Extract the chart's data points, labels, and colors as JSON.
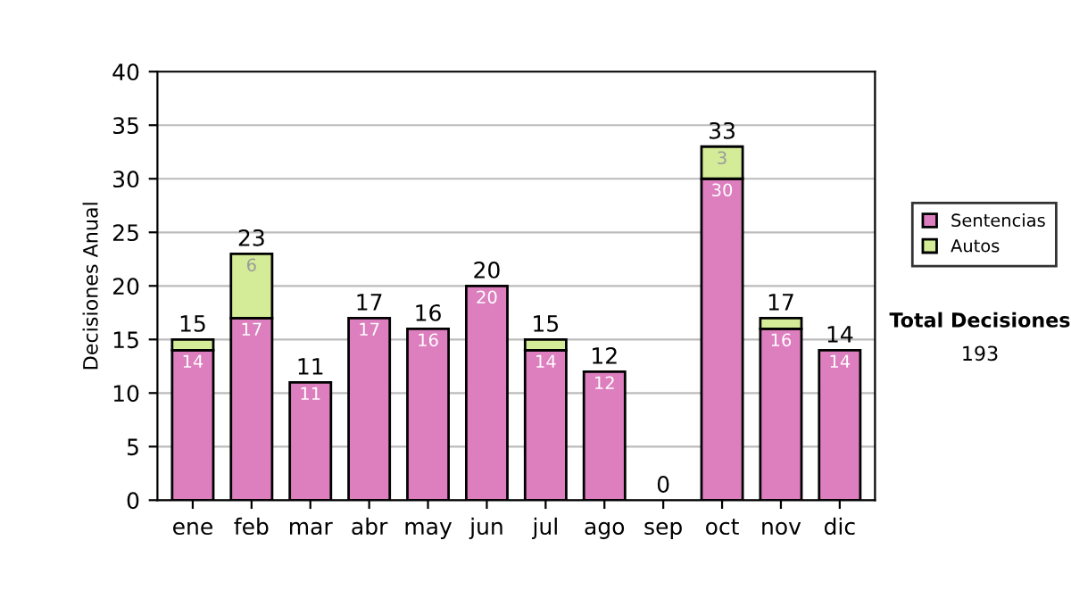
{
  "chart_data": {
    "type": "bar",
    "stacked": true,
    "ylabel": "Decisiones Anual",
    "categories": [
      "ene",
      "feb",
      "mar",
      "abr",
      "may",
      "jun",
      "jul",
      "ago",
      "sep",
      "oct",
      "nov",
      "dic"
    ],
    "series": [
      {
        "name": "Sentencias",
        "color": "#dd7fbf",
        "values": [
          14,
          17,
          11,
          17,
          16,
          20,
          14,
          12,
          0,
          30,
          16,
          14
        ],
        "value_labels": [
          "14",
          "17",
          "11",
          "17",
          "16",
          "20",
          "14",
          "12",
          null,
          "30",
          "16",
          "14"
        ]
      },
      {
        "name": "Autos",
        "color": "#d4ec98",
        "values": [
          1,
          6,
          null,
          null,
          null,
          null,
          1,
          null,
          null,
          3,
          1,
          null
        ],
        "value_labels": [
          null,
          "6",
          null,
          null,
          null,
          null,
          null,
          null,
          null,
          "3",
          null,
          null
        ]
      }
    ],
    "totals": [
      "15",
      "23",
      "11",
      "17",
      "16",
      "20",
      "15",
      "12",
      "0",
      "33",
      "17",
      "14"
    ],
    "ylim": [
      0,
      40
    ],
    "yticks": [
      0,
      5,
      10,
      15,
      20,
      25,
      30,
      35,
      40
    ],
    "grid": "y",
    "legend": "right",
    "annotations": [
      "Total Decisiones",
      "193"
    ]
  }
}
